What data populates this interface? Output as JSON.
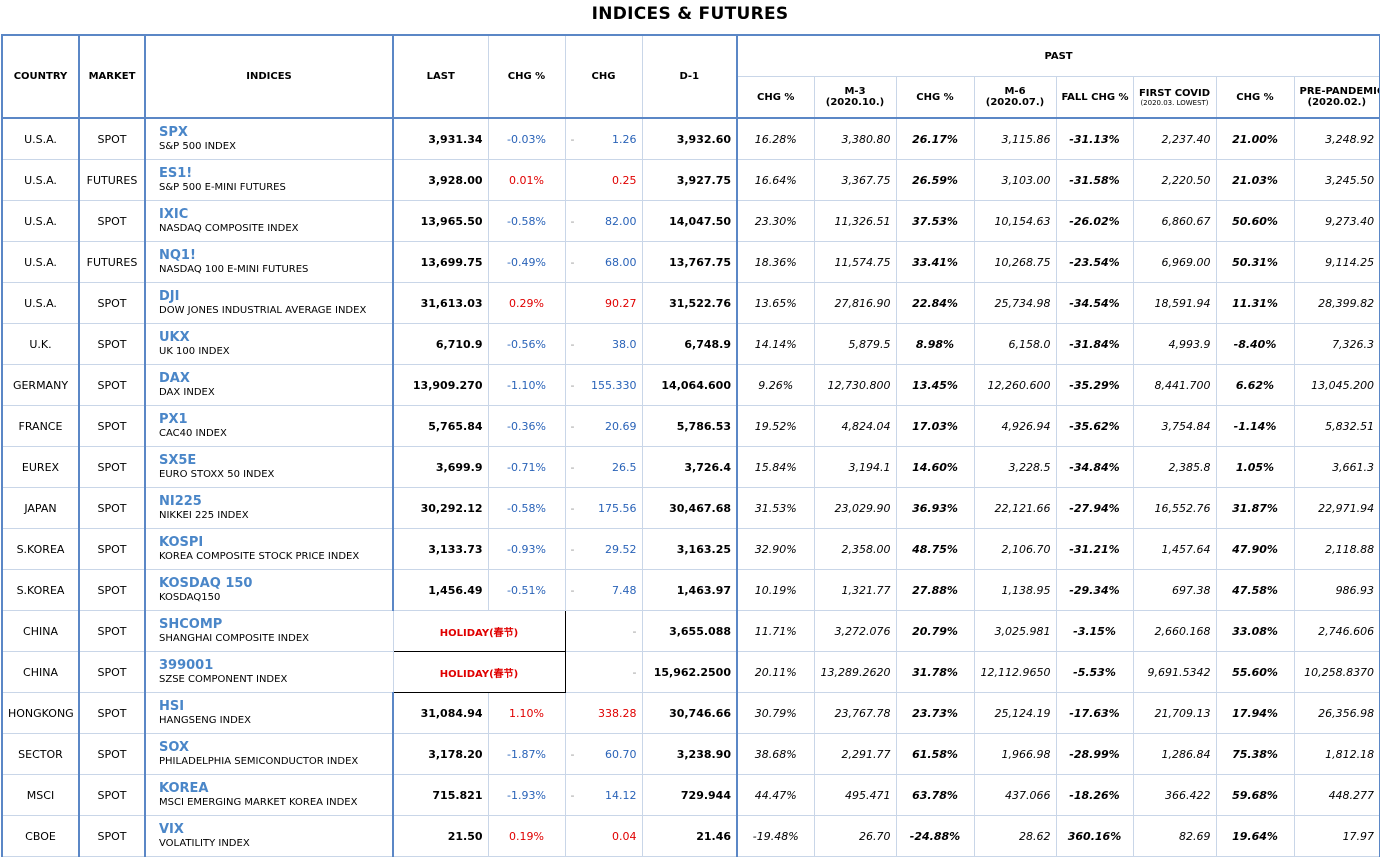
{
  "title": "INDICES & FUTURES",
  "headers": {
    "country": "COUNTRY",
    "market": "MARKET",
    "indices": "INDICES",
    "last": "LAST",
    "chg_pct": "CHG %",
    "chg": "CHG",
    "d1": "D-1",
    "past": "PAST",
    "past_sub": [
      {
        "line1": "CHG %",
        "line2": ""
      },
      {
        "line1": "M-3",
        "line2": "(2020.10.)"
      },
      {
        "line1": "CHG %",
        "line2": ""
      },
      {
        "line1": "M-6",
        "line2": "(2020.07.)"
      },
      {
        "line1": "FALL CHG %",
        "line2": ""
      },
      {
        "line1": "FIRST COVID",
        "line2": "(2020.03. LOWEST)"
      },
      {
        "line1": "CHG %",
        "line2": ""
      },
      {
        "line1": "PRE-PANDEMIC",
        "line2": "(2020.02.)"
      }
    ]
  },
  "colors": {
    "up": "#e00000",
    "down": "#2a63b8",
    "symbol": "#4a86c8",
    "border": "#5b87c6"
  },
  "rows": [
    {
      "country": "U.S.A.",
      "market": "SPOT",
      "symbol": "SPX",
      "name": "S&P 500 INDEX",
      "last": "3,931.34",
      "chg_pct": "-0.03%",
      "dash": "-",
      "chg": "1.26",
      "dir": "down",
      "d1": "3,932.60",
      "m3_chg": "16.28%",
      "m3": "3,380.80",
      "m6_chg": "26.17%",
      "m6": "3,115.86",
      "fall": "-31.13%",
      "covid": "2,237.40",
      "covid_chg": "21.00%",
      "pre": "3,248.92"
    },
    {
      "country": "U.S.A.",
      "market": "FUTURES",
      "symbol": "ES1!",
      "name": "S&P 500 E-MINI FUTURES",
      "last": "3,928.00",
      "chg_pct": "0.01%",
      "dash": "",
      "chg": "0.25",
      "dir": "up",
      "d1": "3,927.75",
      "m3_chg": "16.64%",
      "m3": "3,367.75",
      "m6_chg": "26.59%",
      "m6": "3,103.00",
      "fall": "-31.58%",
      "covid": "2,220.50",
      "covid_chg": "21.03%",
      "pre": "3,245.50"
    },
    {
      "country": "U.S.A.",
      "market": "SPOT",
      "symbol": "IXIC",
      "name": "NASDAQ COMPOSITE INDEX",
      "last": "13,965.50",
      "chg_pct": "-0.58%",
      "dash": "-",
      "chg": "82.00",
      "dir": "down",
      "d1": "14,047.50",
      "m3_chg": "23.30%",
      "m3": "11,326.51",
      "m6_chg": "37.53%",
      "m6": "10,154.63",
      "fall": "-26.02%",
      "covid": "6,860.67",
      "covid_chg": "50.60%",
      "pre": "9,273.40"
    },
    {
      "country": "U.S.A.",
      "market": "FUTURES",
      "symbol": "NQ1!",
      "name": "NASDAQ 100 E-MINI FUTURES",
      "last": "13,699.75",
      "chg_pct": "-0.49%",
      "dash": "-",
      "chg": "68.00",
      "dir": "down",
      "d1": "13,767.75",
      "m3_chg": "18.36%",
      "m3": "11,574.75",
      "m6_chg": "33.41%",
      "m6": "10,268.75",
      "fall": "-23.54%",
      "covid": "6,969.00",
      "covid_chg": "50.31%",
      "pre": "9,114.25"
    },
    {
      "country": "U.S.A.",
      "market": "SPOT",
      "symbol": "DJI",
      "name": "DOW JONES INDUSTRIAL AVERAGE INDEX",
      "last": "31,613.03",
      "chg_pct": "0.29%",
      "dash": "",
      "chg": "90.27",
      "dir": "up",
      "d1": "31,522.76",
      "m3_chg": "13.65%",
      "m3": "27,816.90",
      "m6_chg": "22.84%",
      "m6": "25,734.98",
      "fall": "-34.54%",
      "covid": "18,591.94",
      "covid_chg": "11.31%",
      "pre": "28,399.82"
    },
    {
      "country": "U.K.",
      "market": "SPOT",
      "symbol": "UKX",
      "name": "UK 100 INDEX",
      "last": "6,710.9",
      "chg_pct": "-0.56%",
      "dash": "-",
      "chg": "38.0",
      "dir": "down",
      "d1": "6,748.9",
      "m3_chg": "14.14%",
      "m3": "5,879.5",
      "m6_chg": "8.98%",
      "m6": "6,158.0",
      "fall": "-31.84%",
      "covid": "4,993.9",
      "covid_chg": "-8.40%",
      "pre": "7,326.3"
    },
    {
      "country": "GERMANY",
      "market": "SPOT",
      "symbol": "DAX",
      "name": "DAX INDEX",
      "last": "13,909.270",
      "chg_pct": "-1.10%",
      "dash": "-",
      "chg": "155.330",
      "dir": "down",
      "d1": "14,064.600",
      "m3_chg": "9.26%",
      "m3": "12,730.800",
      "m6_chg": "13.45%",
      "m6": "12,260.600",
      "fall": "-35.29%",
      "covid": "8,441.700",
      "covid_chg": "6.62%",
      "pre": "13,045.200"
    },
    {
      "country": "FRANCE",
      "market": "SPOT",
      "symbol": "PX1",
      "name": "CAC40 INDEX",
      "last": "5,765.84",
      "chg_pct": "-0.36%",
      "dash": "-",
      "chg": "20.69",
      "dir": "down",
      "d1": "5,786.53",
      "m3_chg": "19.52%",
      "m3": "4,824.04",
      "m6_chg": "17.03%",
      "m6": "4,926.94",
      "fall": "-35.62%",
      "covid": "3,754.84",
      "covid_chg": "-1.14%",
      "pre": "5,832.51"
    },
    {
      "country": "EUREX",
      "market": "SPOT",
      "symbol": "SX5E",
      "name": "EURO STOXX 50 INDEX",
      "last": "3,699.9",
      "chg_pct": "-0.71%",
      "dash": "-",
      "chg": "26.5",
      "dir": "down",
      "d1": "3,726.4",
      "m3_chg": "15.84%",
      "m3": "3,194.1",
      "m6_chg": "14.60%",
      "m6": "3,228.5",
      "fall": "-34.84%",
      "covid": "2,385.8",
      "covid_chg": "1.05%",
      "pre": "3,661.3"
    },
    {
      "country": "JAPAN",
      "market": "SPOT",
      "symbol": "NI225",
      "name": "NIKKEI 225 INDEX",
      "last": "30,292.12",
      "chg_pct": "-0.58%",
      "dash": "-",
      "chg": "175.56",
      "dir": "down",
      "d1": "30,467.68",
      "m3_chg": "31.53%",
      "m3": "23,029.90",
      "m6_chg": "36.93%",
      "m6": "22,121.66",
      "fall": "-27.94%",
      "covid": "16,552.76",
      "covid_chg": "31.87%",
      "pre": "22,971.94"
    },
    {
      "country": "S.KOREA",
      "market": "SPOT",
      "symbol": "KOSPI",
      "name": "KOREA COMPOSITE STOCK PRICE INDEX",
      "last": "3,133.73",
      "chg_pct": "-0.93%",
      "dash": "-",
      "chg": "29.52",
      "dir": "down",
      "d1": "3,163.25",
      "m3_chg": "32.90%",
      "m3": "2,358.00",
      "m6_chg": "48.75%",
      "m6": "2,106.70",
      "fall": "-31.21%",
      "covid": "1,457.64",
      "covid_chg": "47.90%",
      "pre": "2,118.88"
    },
    {
      "country": "S.KOREA",
      "market": "SPOT",
      "symbol": "KOSDAQ 150",
      "name": "KOSDAQ150",
      "last": "1,456.49",
      "chg_pct": "-0.51%",
      "dash": "-",
      "chg": "7.48",
      "dir": "down",
      "d1": "1,463.97",
      "m3_chg": "10.19%",
      "m3": "1,321.77",
      "m6_chg": "27.88%",
      "m6": "1,138.95",
      "fall": "-29.34%",
      "covid": "697.38",
      "covid_chg": "47.58%",
      "pre": "986.93"
    },
    {
      "country": "CHINA",
      "market": "SPOT",
      "symbol": "SHCOMP",
      "name": "SHANGHAI COMPOSITE INDEX",
      "holiday": "HOLIDAY(春节)",
      "dash": "-",
      "d1": "3,655.088",
      "m3_chg": "11.71%",
      "m3": "3,272.076",
      "m6_chg": "20.79%",
      "m6": "3,025.981",
      "fall": "-3.15%",
      "covid": "2,660.168",
      "covid_chg": "33.08%",
      "pre": "2,746.606"
    },
    {
      "country": "CHINA",
      "market": "SPOT",
      "symbol": "399001",
      "name": "SZSE COMPONENT INDEX",
      "holiday": "HOLIDAY(春节)",
      "dash": "-",
      "d1": "15,962.2500",
      "m3_chg": "20.11%",
      "m3": "13,289.2620",
      "m6_chg": "31.78%",
      "m6": "12,112.9650",
      "fall": "-5.53%",
      "covid": "9,691.5342",
      "covid_chg": "55.60%",
      "pre": "10,258.8370"
    },
    {
      "country": "HONGKONG",
      "market": "SPOT",
      "symbol": "HSI",
      "name": "HANGSENG INDEX",
      "last": "31,084.94",
      "chg_pct": "1.10%",
      "dash": "",
      "chg": "338.28",
      "dir": "up",
      "d1": "30,746.66",
      "m3_chg": "30.79%",
      "m3": "23,767.78",
      "m6_chg": "23.73%",
      "m6": "25,124.19",
      "fall": "-17.63%",
      "covid": "21,709.13",
      "covid_chg": "17.94%",
      "pre": "26,356.98"
    },
    {
      "country": "SECTOR",
      "market": "SPOT",
      "symbol": "SOX",
      "name": "PHILADELPHIA SEMICONDUCTOR INDEX",
      "last": "3,178.20",
      "chg_pct": "-1.87%",
      "dash": "-",
      "chg": "60.70",
      "dir": "down",
      "d1": "3,238.90",
      "m3_chg": "38.68%",
      "m3": "2,291.77",
      "m6_chg": "61.58%",
      "m6": "1,966.98",
      "fall": "-28.99%",
      "covid": "1,286.84",
      "covid_chg": "75.38%",
      "pre": "1,812.18"
    },
    {
      "country": "MSCI",
      "market": "SPOT",
      "symbol": "KOREA",
      "name": "MSCI EMERGING MARKET KOREA INDEX",
      "last": "715.821",
      "chg_pct": "-1.93%",
      "dash": "-",
      "chg": "14.12",
      "dir": "down",
      "d1": "729.944",
      "m3_chg": "44.47%",
      "m3": "495.471",
      "m6_chg": "63.78%",
      "m6": "437.066",
      "fall": "-18.26%",
      "covid": "366.422",
      "covid_chg": "59.68%",
      "pre": "448.277"
    },
    {
      "country": "CBOE",
      "market": "SPOT",
      "symbol": "VIX",
      "name": "VOLATILITY INDEX",
      "last": "21.50",
      "chg_pct": "0.19%",
      "dash": "",
      "chg": "0.04",
      "dir": "up",
      "d1": "21.46",
      "m3_chg": "-19.48%",
      "m3": "26.70",
      "m6_chg": "-24.88%",
      "m6": "28.62",
      "fall": "360.16%",
      "covid": "82.69",
      "covid_chg": "19.64%",
      "pre": "17.97"
    }
  ]
}
